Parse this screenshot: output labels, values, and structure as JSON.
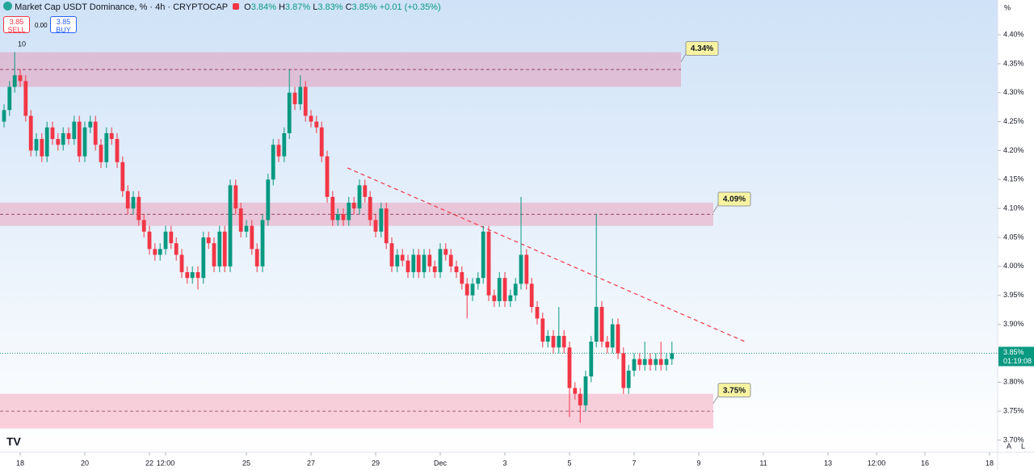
{
  "chart_data": {
    "type": "candlestick",
    "title": "Market Cap USDT Dominance, % · 4h · CRYPTOCAP",
    "ohlc_header": {
      "o_label": "O",
      "o": "3.84%",
      "h_label": "H",
      "h": "3.87%",
      "l_label": "L",
      "l": "3.83%",
      "c_label": "C",
      "c": "3.85%",
      "change": "+0.01 (+0.35%)"
    },
    "up_color": "#089981",
    "down_color": "#f23645",
    "x": [
      -0.5,
      -0.33,
      -0.17,
      0,
      0.17,
      0.33,
      0.5,
      0.67,
      0.83,
      1,
      1.17,
      1.33,
      1.5,
      1.67,
      1.83,
      2,
      2.17,
      2.33,
      2.5,
      2.67,
      2.83,
      3,
      3.17,
      3.33,
      3.5,
      3.67,
      3.83,
      4,
      4.17,
      4.33,
      4.5,
      4.67,
      4.83,
      5,
      5.17,
      5.33,
      5.5,
      5.67,
      5.83,
      6,
      6.17,
      6.33,
      6.5,
      6.67,
      6.83,
      7,
      7.17,
      7.33,
      7.5,
      7.67,
      7.83,
      8,
      8.17,
      8.33,
      8.5,
      8.67,
      8.83,
      9,
      9.17,
      9.33,
      9.5,
      9.67,
      9.83,
      10,
      10.17,
      10.33,
      10.5,
      10.67,
      10.83,
      11,
      11.17,
      11.33,
      11.5,
      11.67,
      11.83,
      12,
      12.17,
      12.33,
      12.5,
      12.67,
      12.83,
      13,
      13.17,
      13.33,
      13.5,
      13.67,
      13.83,
      14,
      14.17,
      14.33,
      14.5,
      14.67,
      14.83,
      15,
      15.17,
      15.33,
      15.5,
      15.67,
      15.83,
      16,
      16.17,
      16.33,
      16.5,
      16.67,
      16.83,
      17,
      17.17,
      17.33,
      17.5,
      17.67,
      17.83,
      18,
      18.17,
      18.33,
      18.5,
      18.67,
      18.83,
      19,
      19.17,
      19.33,
      19.5,
      19.67,
      19.83,
      20,
      20.17
    ],
    "open": [
      4.25,
      4.27,
      4.31,
      4.33,
      4.32,
      4.26,
      4.2,
      4.22,
      4.19,
      4.24,
      4.22,
      4.21,
      4.23,
      4.22,
      4.25,
      4.19,
      4.24,
      4.25,
      4.21,
      4.18,
      4.23,
      4.22,
      4.18,
      4.13,
      4.1,
      4.12,
      4.08,
      4.06,
      4.03,
      4.02,
      4.03,
      4.06,
      4.04,
      4.02,
      3.99,
      3.98,
      3.99,
      3.98,
      4.05,
      4.04,
      4.0,
      4.06,
      4.0,
      4.14,
      4.1,
      4.06,
      4.07,
      4.03,
      4.0,
      4.08,
      4.15,
      4.21,
      4.19,
      4.23,
      4.3,
      4.28,
      4.31,
      4.26,
      4.25,
      4.24,
      4.19,
      4.12,
      4.08,
      4.09,
      4.08,
      4.11,
      4.1,
      4.14,
      4.12,
      4.08,
      4.06,
      4.1,
      4.04,
      4.0,
      4.02,
      4.01,
      3.99,
      4.02,
      3.99,
      4.02,
      4.0,
      3.99,
      4.03,
      4.02,
      4.0,
      3.99,
      3.97,
      3.95,
      3.97,
      3.98,
      4.06,
      3.95,
      3.94,
      3.98,
      3.94,
      3.95,
      3.97,
      4.02,
      3.97,
      3.93,
      3.91,
      3.87,
      3.88,
      3.86,
      3.88,
      3.86,
      3.79,
      3.78,
      3.76,
      3.81,
      3.87,
      3.93,
      3.87,
      3.86,
      3.9,
      3.85,
      3.79,
      3.82,
      3.84,
      3.83,
      3.84,
      3.83,
      3.84,
      3.83,
      3.84
    ],
    "high": [
      4.28,
      4.32,
      4.37,
      4.34,
      4.33,
      4.27,
      4.23,
      4.23,
      4.25,
      4.25,
      4.23,
      4.24,
      4.24,
      4.26,
      4.26,
      4.25,
      4.26,
      4.26,
      4.22,
      4.24,
      4.24,
      4.23,
      4.19,
      4.14,
      4.13,
      4.13,
      4.09,
      4.07,
      4.04,
      4.04,
      4.07,
      4.07,
      4.05,
      4.03,
      4.0,
      4.0,
      4.0,
      4.06,
      4.06,
      4.05,
      4.07,
      4.07,
      4.15,
      4.15,
      4.11,
      4.08,
      4.08,
      4.04,
      4.09,
      4.16,
      4.22,
      4.22,
      4.24,
      4.34,
      4.31,
      4.33,
      4.32,
      4.27,
      4.26,
      4.25,
      4.2,
      4.13,
      4.1,
      4.1,
      4.12,
      4.12,
      4.15,
      4.15,
      4.13,
      4.09,
      4.11,
      4.11,
      4.05,
      4.03,
      4.03,
      4.02,
      4.03,
      4.03,
      4.03,
      4.03,
      4.01,
      4.04,
      4.04,
      4.03,
      4.01,
      4.0,
      3.98,
      3.98,
      3.99,
      4.07,
      4.07,
      3.96,
      3.99,
      3.99,
      3.96,
      3.98,
      4.12,
      4.03,
      3.98,
      3.94,
      3.92,
      3.89,
      3.89,
      3.93,
      3.89,
      3.87,
      3.8,
      3.79,
      3.82,
      3.88,
      4.09,
      3.94,
      3.88,
      3.91,
      3.91,
      3.86,
      3.83,
      3.85,
      3.85,
      3.87,
      3.85,
      3.85,
      3.87,
      3.85,
      3.87
    ],
    "low": [
      4.24,
      4.26,
      4.3,
      4.31,
      4.25,
      4.19,
      4.19,
      4.18,
      4.18,
      4.21,
      4.2,
      4.2,
      4.21,
      4.21,
      4.18,
      4.18,
      4.23,
      4.2,
      4.17,
      4.17,
      4.21,
      4.17,
      4.12,
      4.09,
      4.09,
      4.07,
      4.05,
      4.02,
      4.01,
      4.01,
      4.02,
      4.03,
      4.01,
      3.98,
      3.97,
      3.97,
      3.96,
      3.97,
      4.03,
      3.99,
      3.99,
      3.99,
      3.99,
      4.09,
      4.05,
      4.05,
      4.02,
      3.99,
      3.99,
      4.07,
      4.14,
      4.18,
      4.18,
      4.22,
      4.27,
      4.27,
      4.25,
      4.24,
      4.23,
      4.18,
      4.11,
      4.07,
      4.07,
      4.07,
      4.07,
      4.09,
      4.09,
      4.11,
      4.07,
      4.05,
      4.05,
      4.03,
      3.99,
      3.99,
      4.0,
      3.98,
      3.98,
      3.98,
      3.98,
      3.99,
      3.98,
      3.98,
      4.01,
      3.99,
      3.98,
      3.96,
      3.91,
      3.94,
      3.96,
      3.97,
      3.94,
      3.93,
      3.93,
      3.93,
      3.93,
      3.94,
      3.96,
      3.96,
      3.92,
      3.9,
      3.86,
      3.86,
      3.85,
      3.85,
      3.85,
      3.74,
      3.77,
      3.73,
      3.75,
      3.8,
      3.86,
      3.86,
      3.85,
      3.85,
      3.84,
      3.78,
      3.78,
      3.81,
      3.82,
      3.82,
      3.82,
      3.82,
      3.82,
      3.82,
      3.83
    ],
    "close": [
      4.27,
      4.31,
      4.33,
      4.32,
      4.26,
      4.2,
      4.22,
      4.19,
      4.24,
      4.22,
      4.21,
      4.23,
      4.22,
      4.25,
      4.19,
      4.24,
      4.25,
      4.21,
      4.18,
      4.23,
      4.22,
      4.18,
      4.13,
      4.1,
      4.12,
      4.08,
      4.06,
      4.03,
      4.02,
      4.03,
      4.06,
      4.04,
      4.02,
      3.99,
      3.98,
      3.99,
      3.98,
      4.05,
      4.04,
      4.0,
      4.06,
      4.0,
      4.14,
      4.1,
      4.06,
      4.07,
      4.03,
      4.0,
      4.08,
      4.15,
      4.21,
      4.19,
      4.23,
      4.3,
      4.28,
      4.31,
      4.26,
      4.25,
      4.24,
      4.19,
      4.12,
      4.08,
      4.09,
      4.08,
      4.11,
      4.1,
      4.14,
      4.12,
      4.08,
      4.06,
      4.1,
      4.04,
      4.0,
      4.02,
      4.01,
      3.99,
      4.02,
      3.99,
      4.02,
      4.0,
      3.99,
      4.03,
      4.02,
      4.0,
      3.99,
      3.97,
      3.95,
      3.97,
      3.98,
      4.06,
      3.95,
      3.94,
      3.98,
      3.94,
      3.95,
      3.97,
      4.02,
      3.97,
      3.93,
      3.91,
      3.87,
      3.88,
      3.86,
      3.88,
      3.86,
      3.79,
      3.78,
      3.76,
      3.81,
      3.87,
      3.93,
      3.87,
      3.86,
      3.9,
      3.85,
      3.79,
      3.82,
      3.84,
      3.83,
      3.84,
      3.83,
      3.84,
      3.83,
      3.84,
      3.85
    ],
    "xlim": [
      -0.625,
      30.25
    ],
    "xticks": [
      {
        "value": 0,
        "label": "18"
      },
      {
        "value": 2,
        "label": "20"
      },
      {
        "value": 4,
        "label": "22"
      },
      {
        "value": 4.5,
        "label": "12:00"
      },
      {
        "value": 7,
        "label": "25"
      },
      {
        "value": 9,
        "label": "27"
      },
      {
        "value": 11,
        "label": "29"
      },
      {
        "value": 13,
        "label": "Dec"
      },
      {
        "value": 15,
        "label": "3"
      },
      {
        "value": 17,
        "label": "5"
      },
      {
        "value": 19,
        "label": "7"
      },
      {
        "value": 21,
        "label": "9"
      },
      {
        "value": 23,
        "label": "11"
      },
      {
        "value": 25,
        "label": "13"
      },
      {
        "value": 26.5,
        "label": "12:00"
      },
      {
        "value": 28,
        "label": "16"
      },
      {
        "value": 30,
        "label": "18"
      }
    ],
    "ylim": [
      3.7,
      4.46
    ],
    "yticks": [
      {
        "value": 3.7,
        "label": "3.70%"
      },
      {
        "value": 3.75,
        "label": "3.75%"
      },
      {
        "value": 3.8,
        "label": "3.80%"
      },
      {
        "value": 3.85,
        "label": "3.85%"
      },
      {
        "value": 3.9,
        "label": "3.90%"
      },
      {
        "value": 3.95,
        "label": "3.95%"
      },
      {
        "value": 4.0,
        "label": "4.00%"
      },
      {
        "value": 4.05,
        "label": "4.05%"
      },
      {
        "value": 4.1,
        "label": "4.10%"
      },
      {
        "value": 4.15,
        "label": "4.15%"
      },
      {
        "value": 4.2,
        "label": "4.20%"
      },
      {
        "value": 4.25,
        "label": "4.25%"
      },
      {
        "value": 4.3,
        "label": "4.30%"
      },
      {
        "value": 4.35,
        "label": "4.35%"
      },
      {
        "value": 4.4,
        "label": "4.40%"
      }
    ],
    "zones": [
      {
        "low": 4.31,
        "high": 4.37,
        "level": 4.34,
        "label": "4.34%",
        "x_end": 20.45
      },
      {
        "low": 4.07,
        "high": 4.11,
        "level": 4.09,
        "label": "4.09%",
        "x_end": 21.45
      },
      {
        "low": 3.72,
        "high": 3.78,
        "level": 3.75,
        "label": "3.75%",
        "x_end": 21.45
      }
    ],
    "trendline": {
      "x": [
        10.13,
        22.43
      ],
      "y": [
        4.17,
        3.87
      ]
    },
    "last_price": 3.85,
    "last_label": "3.85%",
    "countdown": "01:19:08",
    "ui": {
      "sell_price": "3.85",
      "sell": "SELL",
      "spread": "0.00",
      "buy_price": "3.85",
      "buy": "BUY",
      "indicator": "10",
      "unit": "%",
      "auto": "A",
      "log": "L"
    }
  }
}
